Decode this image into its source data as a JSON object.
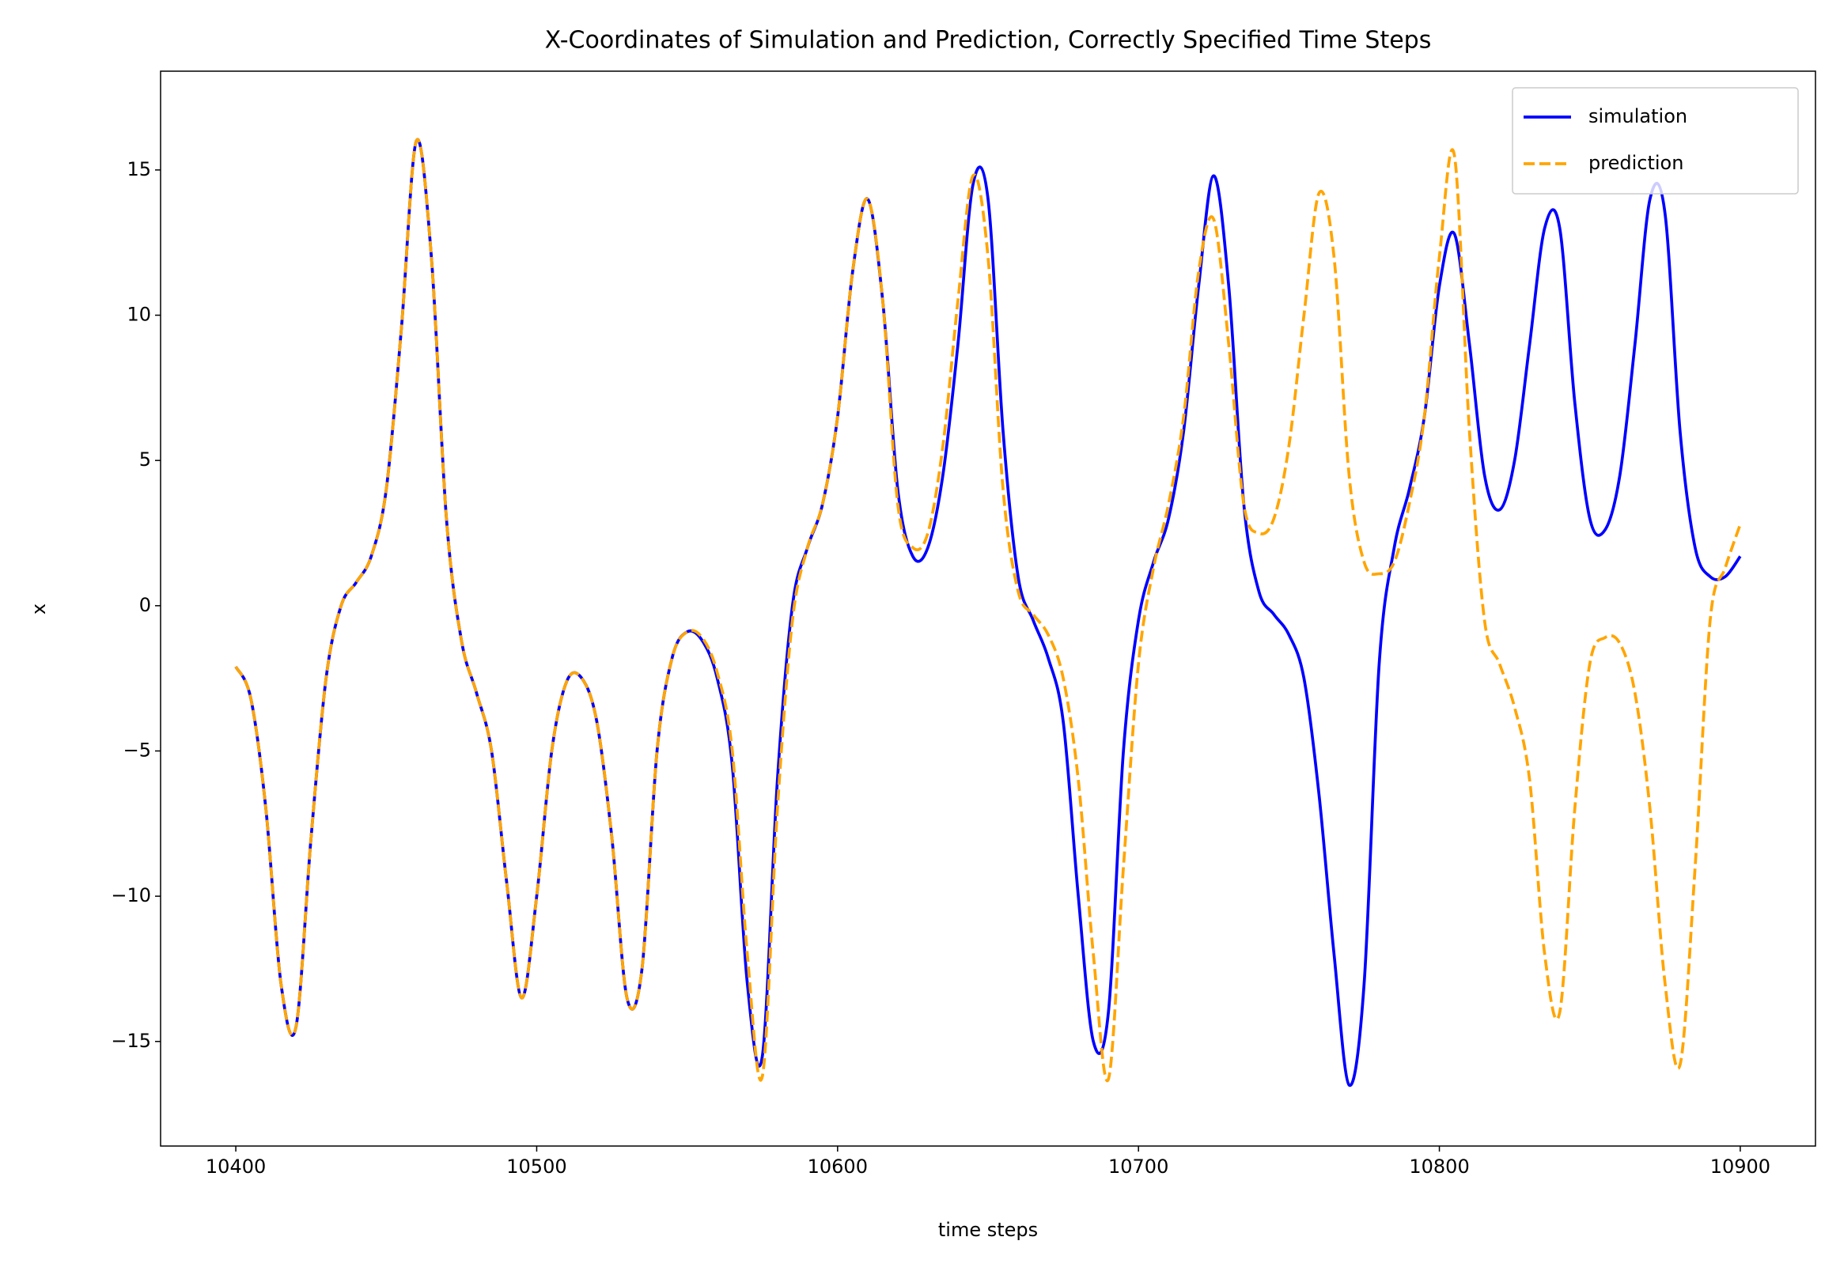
{
  "chart_data": {
    "type": "line",
    "title": "X-Coordinates of Simulation and Prediction, Correctly Specified Time Steps",
    "xlabel": "time steps",
    "ylabel": "x",
    "x": [
      10400,
      10405,
      10410,
      10415,
      10420,
      10425,
      10430,
      10435,
      10440,
      10445,
      10450,
      10455,
      10460,
      10465,
      10470,
      10475,
      10480,
      10485,
      10490,
      10495,
      10500,
      10505,
      10510,
      10515,
      10520,
      10525,
      10530,
      10535,
      10540,
      10545,
      10550,
      10555,
      10560,
      10565,
      10570,
      10575,
      10580,
      10585,
      10590,
      10595,
      10600,
      10605,
      10610,
      10615,
      10620,
      10625,
      10630,
      10635,
      10640,
      10645,
      10650,
      10655,
      10660,
      10665,
      10670,
      10675,
      10680,
      10685,
      10690,
      10695,
      10700,
      10705,
      10710,
      10715,
      10720,
      10725,
      10730,
      10735,
      10740,
      10745,
      10750,
      10755,
      10760,
      10765,
      10770,
      10775,
      10780,
      10785,
      10790,
      10795,
      10800,
      10805,
      10810,
      10815,
      10820,
      10825,
      10830,
      10835,
      10840,
      10845,
      10850,
      10855,
      10860,
      10865,
      10870,
      10875,
      10880,
      10885,
      10890,
      10895,
      10900
    ],
    "series": [
      {
        "name": "simulation",
        "color": "#0000ff",
        "dash": "solid",
        "values": [
          -2.1,
          -3.2,
          -7,
          -13,
          -14.5,
          -8,
          -2.5,
          0,
          0.8,
          1.7,
          4,
          9.5,
          16,
          12,
          3,
          -1.2,
          -3,
          -5,
          -9.5,
          -13.5,
          -10,
          -5,
          -2.6,
          -2.5,
          -4,
          -8,
          -13.5,
          -12.5,
          -5,
          -1.8,
          -0.9,
          -1.2,
          -2.5,
          -5.5,
          -13,
          -15.5,
          -6,
          0,
          2,
          3.5,
          6.5,
          11.5,
          14,
          10.5,
          4,
          1.7,
          2,
          4.5,
          9,
          14.5,
          14,
          6,
          1,
          -0.5,
          -1.8,
          -4,
          -10,
          -15,
          -14,
          -5,
          -0.5,
          1.5,
          3,
          6,
          11,
          14.8,
          11,
          3.5,
          0.5,
          -0.3,
          -1,
          -2.5,
          -6.5,
          -12,
          -16.5,
          -13,
          -2,
          2,
          4,
          6.5,
          11,
          12.8,
          9,
          4.5,
          3.3,
          5,
          9,
          13,
          13,
          7,
          3,
          2.6,
          4.5,
          9,
          14,
          13.5,
          6,
          2,
          1,
          1,
          1.7
        ]
      },
      {
        "name": "prediction",
        "color": "#ffa500",
        "dash": "dashed",
        "values": [
          -2.1,
          -3.2,
          -7,
          -13,
          -14.5,
          -8,
          -2.5,
          0,
          0.8,
          1.7,
          4,
          9.5,
          16,
          12,
          3,
          -1.2,
          -3,
          -5,
          -9.5,
          -13.5,
          -10,
          -5,
          -2.6,
          -2.5,
          -4,
          -8,
          -13.5,
          -12.5,
          -5,
          -1.8,
          -0.9,
          -1.1,
          -2.3,
          -5,
          -12,
          -16.2,
          -7,
          -0.5,
          2,
          3.5,
          6.5,
          11.5,
          14,
          10.5,
          3.5,
          2,
          2.5,
          5.5,
          10.5,
          14.8,
          12,
          4,
          0.5,
          -0.3,
          -1,
          -2.5,
          -6,
          -12,
          -16.3,
          -9,
          -2,
          1.3,
          3.5,
          6.5,
          11.5,
          13.3,
          9,
          3.5,
          2.5,
          3,
          5.5,
          10,
          14.2,
          12,
          4.5,
          1.5,
          1.1,
          1.5,
          3.5,
          6.5,
          12,
          15.5,
          6,
          -0.5,
          -2,
          -3.5,
          -6,
          -12,
          -14,
          -7,
          -2,
          -1.1,
          -1.3,
          -3,
          -7,
          -13,
          -15.8,
          -9,
          -0.5,
          1.3,
          2.8
        ]
      }
    ],
    "xlim": [
      10375,
      10925
    ],
    "ylim": [
      -18.6,
      18.4
    ],
    "xticks": [
      10400,
      10500,
      10600,
      10700,
      10800,
      10900
    ],
    "yticks": [
      {
        "value": -15,
        "label": "−15"
      },
      {
        "value": -10,
        "label": "−10"
      },
      {
        "value": -5,
        "label": "−5"
      },
      0,
      5,
      10,
      15
    ],
    "legend": "upper right"
  }
}
